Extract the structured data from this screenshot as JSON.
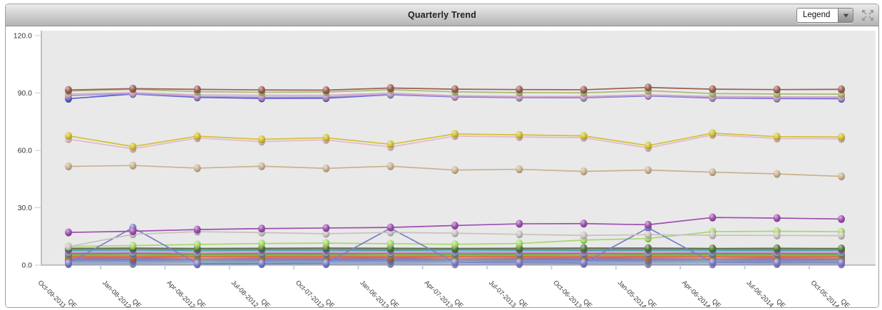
{
  "header": {
    "title": "Quarterly Trend",
    "legend_dropdown": {
      "label": "Legend"
    },
    "expand_icon": "expand-arrows-icon"
  },
  "colors": {
    "panel_border": "#9e9e9e",
    "header_gradient_top": "#ececec",
    "header_gradient_bottom": "#b4b4b4",
    "plot_background": "#e9e9e9",
    "axis_line": "#b0b0b0",
    "x_tick": "#b9d6e3",
    "tick_label": "#333333"
  },
  "chart_data": {
    "type": "line",
    "title": "Quarterly Trend",
    "legend_position": "collapsed-dropdown",
    "grid": false,
    "ylim": [
      0,
      120
    ],
    "y_ticks": [
      0,
      30,
      60,
      90,
      120
    ],
    "y_tick_format": "one-decimal",
    "x_tick_suffix": "QE",
    "categories": [
      "Oct-09-2011",
      "Jan-08-2012",
      "Apr-08-2012",
      "Jul-08-2012",
      "Oct-07-2012",
      "Jan-06-2013",
      "Apr-07-2013",
      "Jul-07-2013",
      "Oct-06-2013",
      "Jan-05-2014",
      "Apr-06-2014",
      "Jul-06-2014",
      "Oct-05-2014"
    ],
    "series": [
      {
        "name": "maroon",
        "color": "#9a5f55",
        "values": [
          91.6,
          92.3,
          91.9,
          91.6,
          91.5,
          92.6,
          92.0,
          91.8,
          91.7,
          92.9,
          92.0,
          91.8,
          91.9
        ]
      },
      {
        "name": "olive-green",
        "color": "#a9ba72",
        "values": [
          91.0,
          91.9,
          90.7,
          90.4,
          90.5,
          91.7,
          90.6,
          90.2,
          90.1,
          91.2,
          89.7,
          89.5,
          89.4
        ]
      },
      {
        "name": "pink",
        "color": "#d7a9c9",
        "values": [
          89.4,
          90.2,
          89.0,
          88.8,
          88.8,
          89.9,
          88.6,
          88.2,
          88.2,
          89.1,
          88.2,
          88.0,
          88.0
        ]
      },
      {
        "name": "lavender",
        "color": "#a79ad6",
        "values": [
          88.6,
          89.7,
          88.2,
          87.8,
          87.9,
          89.3,
          88.2,
          87.8,
          87.7,
          88.7,
          87.6,
          87.4,
          87.4
        ]
      },
      {
        "name": "royal-blue",
        "color": "#5b5bd0",
        "values": [
          87.0,
          89.5,
          87.7,
          87.2,
          87.3,
          89.1,
          88.0,
          87.6,
          87.5,
          88.5,
          87.4,
          87.1,
          87.0
        ]
      },
      {
        "name": "gold",
        "color": "#d2c133",
        "values": [
          67.6,
          62.0,
          67.4,
          65.8,
          66.6,
          63.2,
          68.6,
          68.1,
          67.6,
          62.5,
          69.0,
          67.2,
          67.0
        ]
      },
      {
        "name": "blush-pink",
        "color": "#e3bac7",
        "values": [
          65.9,
          60.8,
          66.4,
          64.6,
          65.5,
          61.8,
          67.5,
          67.0,
          66.6,
          61.3,
          68.1,
          66.2,
          66.0
        ]
      },
      {
        "name": "tan",
        "color": "#c9b28f",
        "values": [
          51.6,
          52.1,
          50.7,
          51.7,
          50.6,
          51.7,
          49.7,
          50.1,
          49.0,
          49.7,
          48.6,
          47.7,
          46.4
        ]
      },
      {
        "name": "purple",
        "color": "#9d4fae",
        "values": [
          17.1,
          17.7,
          18.6,
          19.1,
          19.4,
          19.7,
          20.7,
          21.6,
          21.7,
          21.1,
          24.9,
          24.6,
          24.1
        ]
      },
      {
        "name": "silver-gray",
        "color": "#c6c2bd",
        "values": [
          9.6,
          16.1,
          17.5,
          17.0,
          16.4,
          17.1,
          16.7,
          16.1,
          15.5,
          15.9,
          15.6,
          15.5,
          15.4
        ]
      },
      {
        "name": "periwinkle-blue",
        "color": "#7d7dcb",
        "values": [
          1.0,
          19.6,
          0.8,
          0.9,
          1.0,
          19.3,
          1.4,
          1.3,
          1.2,
          19.5,
          1.4,
          1.3,
          1.2
        ]
      },
      {
        "name": "yellow-green",
        "color": "#a5d96a",
        "values": [
          9.8,
          10.2,
          10.8,
          11.3,
          11.5,
          11.2,
          10.9,
          11.3,
          13.1,
          13.9,
          17.5,
          17.7,
          17.5
        ]
      },
      {
        "name": "forest-green",
        "color": "#4f7a38",
        "values": [
          8.8,
          8.9,
          8.7,
          8.8,
          8.9,
          8.8,
          8.7,
          8.8,
          8.9,
          8.9,
          8.7,
          8.8,
          8.7
        ]
      },
      {
        "name": "magenta",
        "color": "#cc5ecc",
        "values": [
          8.3,
          8.2,
          8.4,
          8.3,
          8.2,
          8.3,
          8.4,
          8.3,
          8.2,
          8.3,
          8.4,
          8.2,
          8.1
        ]
      },
      {
        "name": "teal",
        "color": "#3aa89b",
        "values": [
          7.8,
          7.9,
          7.7,
          7.8,
          7.8,
          7.7,
          7.9,
          7.8,
          7.7,
          7.8,
          7.8,
          7.7,
          7.8
        ]
      },
      {
        "name": "sky-blue",
        "color": "#85c4e0",
        "values": [
          7.3,
          7.2,
          7.4,
          7.3,
          7.3,
          7.4,
          7.2,
          7.3,
          7.4,
          7.3,
          7.2,
          7.3,
          7.2
        ]
      },
      {
        "name": "rose",
        "color": "#ee9dc2",
        "values": [
          6.8,
          6.9,
          6.7,
          6.8,
          6.8,
          6.7,
          6.9,
          6.8,
          6.8,
          6.7,
          6.9,
          6.8,
          6.7
        ]
      },
      {
        "name": "violet",
        "color": "#8b6fd0",
        "values": [
          6.3,
          6.2,
          6.4,
          6.3,
          6.2,
          6.3,
          6.4,
          6.3,
          6.2,
          6.3,
          6.3,
          6.2,
          6.3
        ]
      },
      {
        "name": "medium-green",
        "color": "#5fae57",
        "values": [
          5.8,
          5.9,
          5.7,
          5.8,
          5.8,
          5.9,
          5.7,
          5.8,
          5.9,
          5.8,
          5.7,
          5.8,
          5.7
        ]
      },
      {
        "name": "olive-drab",
        "color": "#a2a23e",
        "values": [
          5.3,
          5.2,
          5.4,
          5.3,
          5.3,
          5.2,
          5.4,
          5.3,
          5.2,
          5.3,
          5.4,
          5.2,
          5.3
        ]
      },
      {
        "name": "orange",
        "color": "#df8f3e",
        "values": [
          4.8,
          4.9,
          4.7,
          4.8,
          4.8,
          4.9,
          4.7,
          4.8,
          4.9,
          4.8,
          4.7,
          4.8,
          4.7
        ]
      },
      {
        "name": "brick-red",
        "color": "#ce4f4f",
        "values": [
          4.3,
          4.2,
          4.4,
          4.3,
          4.3,
          4.2,
          4.4,
          4.3,
          4.2,
          4.3,
          4.4,
          4.2,
          4.3
        ]
      },
      {
        "name": "salmon",
        "color": "#e8917e",
        "values": [
          3.8,
          3.9,
          3.7,
          3.8,
          3.8,
          3.9,
          3.7,
          3.8,
          3.9,
          3.8,
          3.7,
          3.8,
          3.7
        ]
      },
      {
        "name": "plum",
        "color": "#7f5fb0",
        "values": [
          3.3,
          3.2,
          3.4,
          3.3,
          3.3,
          3.2,
          3.4,
          3.3,
          3.2,
          3.3,
          3.4,
          3.2,
          3.3
        ]
      },
      {
        "name": "gray",
        "color": "#9e9e9e",
        "values": [
          2.8,
          2.9,
          2.7,
          2.8,
          2.8,
          2.9,
          2.7,
          2.8,
          2.9,
          2.8,
          2.7,
          2.8,
          2.7
        ]
      },
      {
        "name": "cornflower",
        "color": "#6281d0",
        "values": [
          2.3,
          2.2,
          2.4,
          2.3,
          2.3,
          2.2,
          2.4,
          2.3,
          2.2,
          2.3,
          2.4,
          2.2,
          2.3
        ]
      },
      {
        "name": "mint",
        "color": "#78c695",
        "values": [
          1.8,
          1.9,
          1.7,
          1.8,
          1.8,
          1.9,
          1.7,
          1.8,
          1.9,
          1.8,
          1.7,
          1.8,
          1.7
        ]
      },
      {
        "name": "periwinkle",
        "color": "#9a9ade",
        "values": [
          1.3,
          1.2,
          1.4,
          1.3,
          1.3,
          1.2,
          1.4,
          1.3,
          1.2,
          1.3,
          1.4,
          1.2,
          1.3
        ]
      },
      {
        "name": "mauve",
        "color": "#d8aed4",
        "values": [
          0.9,
          1.0,
          0.8,
          0.9,
          0.9,
          1.0,
          0.8,
          0.9,
          1.0,
          0.9,
          0.8,
          0.9,
          0.8
        ]
      },
      {
        "name": "steel-blue",
        "color": "#7f93b5",
        "values": [
          0.5,
          0.6,
          0.4,
          0.5,
          0.5,
          0.6,
          0.4,
          0.5,
          0.6,
          0.5,
          0.4,
          0.5,
          0.4
        ]
      }
    ]
  }
}
